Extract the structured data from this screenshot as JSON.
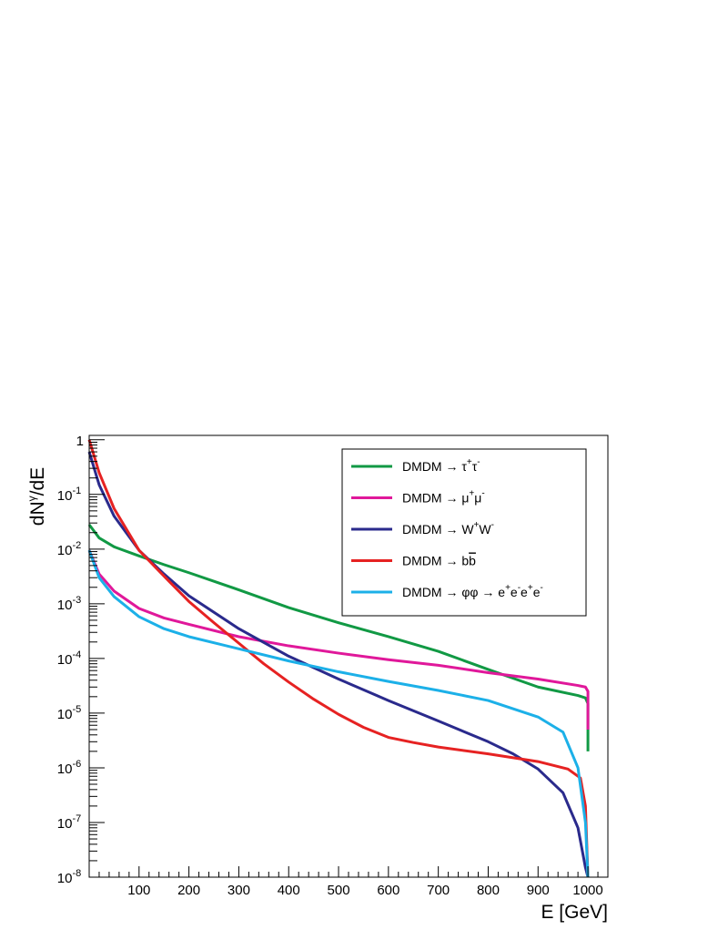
{
  "chart_data": {
    "type": "line",
    "xlabel": "E [GeV]",
    "ylabel": "dNʸ/dE",
    "ylabel_parts": {
      "main": "dN",
      "sup": "γ",
      "rest": "/dE"
    },
    "xlim": [
      0,
      1040
    ],
    "ylim": [
      1e-08,
      1.2
    ],
    "log_y": true,
    "grid": false,
    "legend_position": "top-right",
    "x_ticks": [
      100,
      200,
      300,
      400,
      500,
      600,
      700,
      800,
      900,
      1000
    ],
    "y_ticks": [
      {
        "value": 1,
        "base": "1",
        "exp": ""
      },
      {
        "value": 0.1,
        "base": "10",
        "exp": "-1"
      },
      {
        "value": 0.01,
        "base": "10",
        "exp": "-2"
      },
      {
        "value": 0.001,
        "base": "10",
        "exp": "-3"
      },
      {
        "value": 0.0001,
        "base": "10",
        "exp": "-4"
      },
      {
        "value": 1e-05,
        "base": "10",
        "exp": "-5"
      },
      {
        "value": 1e-06,
        "base": "10",
        "exp": "-6"
      },
      {
        "value": 1e-07,
        "base": "10",
        "exp": "-7"
      },
      {
        "value": 1e-08,
        "base": "10",
        "exp": "-8"
      }
    ],
    "series": [
      {
        "name": "DMDM → τ⁺τ⁻",
        "legend_parts": [
          [
            "DMDM ",
            ""
          ],
          [
            "→ ",
            ""
          ],
          [
            "τ",
            ""
          ],
          [
            "+",
            "sup"
          ],
          [
            "τ",
            ""
          ],
          [
            "-",
            "sup"
          ]
        ],
        "color": "#119944",
        "x": [
          0,
          20,
          50,
          100,
          150,
          200,
          300,
          400,
          500,
          600,
          700,
          800,
          900,
          980,
          995,
          1000,
          1000
        ],
        "y": [
          0.028,
          0.016,
          0.011,
          0.0075,
          0.0052,
          0.0037,
          0.0018,
          0.00085,
          0.00045,
          0.00025,
          0.000135,
          6.3e-05,
          3e-05,
          2.1e-05,
          1.9e-05,
          1.5e-05,
          2e-06
        ]
      },
      {
        "name": "DMDM → μ⁺μ⁻",
        "legend_parts": [
          [
            "DMDM ",
            ""
          ],
          [
            "→ ",
            ""
          ],
          [
            "μ",
            ""
          ],
          [
            "+",
            "sup"
          ],
          [
            "μ",
            ""
          ],
          [
            "-",
            "sup"
          ]
        ],
        "color": "#e0189a",
        "x": [
          0,
          20,
          50,
          100,
          150,
          200,
          300,
          400,
          500,
          600,
          700,
          800,
          900,
          980,
          995,
          1000,
          1000
        ],
        "y": [
          0.0095,
          0.0035,
          0.0017,
          0.00082,
          0.00055,
          0.00042,
          0.00025,
          0.00017,
          0.000125,
          9.5e-05,
          7.5e-05,
          5.5e-05,
          4.2e-05,
          3.2e-05,
          3e-05,
          2.5e-05,
          5e-06
        ]
      },
      {
        "name": "DMDM → W⁺W⁻",
        "legend_parts": [
          [
            "DMDM ",
            ""
          ],
          [
            "→ ",
            ""
          ],
          [
            "W",
            ""
          ],
          [
            "+",
            "sup"
          ],
          [
            "W",
            ""
          ],
          [
            "-",
            "sup"
          ]
        ],
        "color": "#2a2a8c",
        "x": [
          0,
          20,
          50,
          100,
          150,
          200,
          300,
          400,
          500,
          600,
          700,
          800,
          850,
          900,
          950,
          980,
          995,
          1000
        ],
        "y": [
          0.6,
          0.15,
          0.04,
          0.0095,
          0.0035,
          0.0014,
          0.00035,
          0.00011,
          4.2e-05,
          1.7e-05,
          7.2e-06,
          3e-06,
          1.8e-06,
          9.5e-07,
          3.5e-07,
          8e-08,
          1.5e-08,
          1e-08
        ]
      },
      {
        "name": "DMDM → bb̅",
        "legend_parts": [
          [
            "DMDM ",
            ""
          ],
          [
            "→ ",
            ""
          ],
          [
            "b",
            ""
          ],
          [
            "b",
            "bar"
          ]
        ],
        "color": "#e62222",
        "x": [
          0,
          20,
          50,
          100,
          150,
          200,
          250,
          300,
          350,
          400,
          450,
          500,
          550,
          600,
          650,
          700,
          800,
          900,
          960,
          985,
          995,
          1000
        ],
        "y": [
          1.0,
          0.25,
          0.055,
          0.0095,
          0.0032,
          0.0011,
          0.00045,
          0.00019,
          8e-05,
          3.7e-05,
          1.8e-05,
          9.5e-06,
          5.5e-06,
          3.6e-06,
          2.9e-06,
          2.4e-06,
          1.8e-06,
          1.3e-06,
          9.5e-07,
          6.5e-07,
          2e-07,
          1e-08
        ]
      },
      {
        "name": "DMDM → φφ → e⁺e⁻e⁺e⁻",
        "legend_parts": [
          [
            "DMDM ",
            ""
          ],
          [
            "→ ",
            ""
          ],
          [
            "φφ ",
            ""
          ],
          [
            "→ ",
            ""
          ],
          [
            "e",
            ""
          ],
          [
            "+",
            "sup"
          ],
          [
            "e",
            ""
          ],
          [
            "-",
            "sup"
          ],
          [
            "e",
            ""
          ],
          [
            "+",
            "sup"
          ],
          [
            "e",
            ""
          ],
          [
            "-",
            "sup"
          ]
        ],
        "color": "#1cb0e8",
        "x": [
          0,
          20,
          50,
          100,
          150,
          200,
          300,
          400,
          500,
          600,
          700,
          800,
          900,
          950,
          980,
          995,
          1000
        ],
        "y": [
          0.0095,
          0.003,
          0.00135,
          0.00058,
          0.00035,
          0.00025,
          0.00015,
          9e-05,
          5.7e-05,
          3.8e-05,
          2.6e-05,
          1.7e-05,
          8.5e-06,
          4.5e-06,
          1e-06,
          1e-07,
          1e-08
        ]
      }
    ]
  }
}
